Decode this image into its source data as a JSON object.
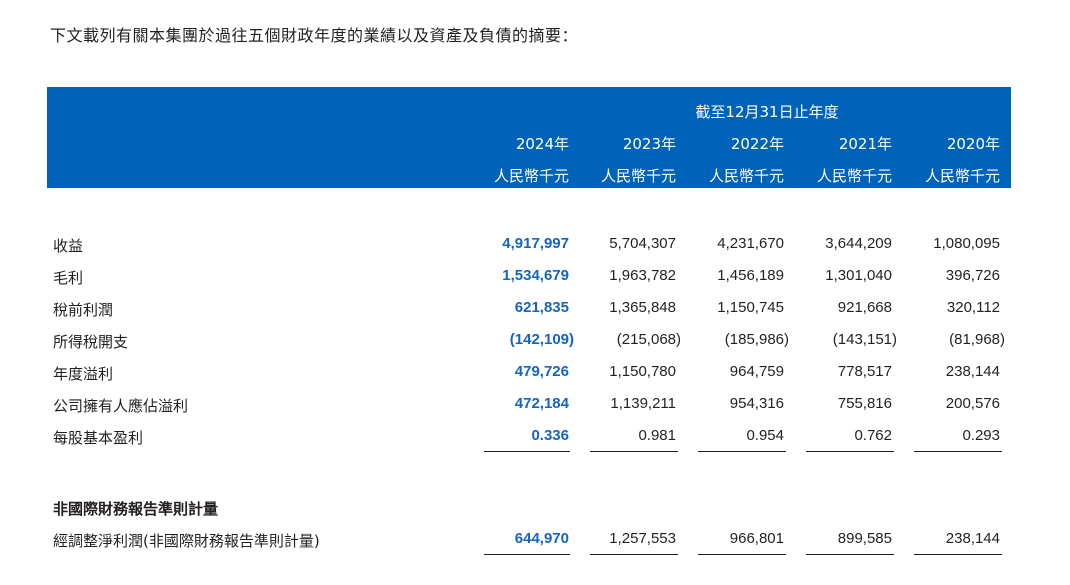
{
  "intro": "下文載列有關本集團於過往五個財政年度的業績以及資產及負債的摘要：",
  "header": {
    "period": "截至12月31日止年度",
    "years": [
      "2024年",
      "2023年",
      "2022年",
      "2021年",
      "2020年"
    ],
    "unit": "人民幣千元"
  },
  "rows": [
    {
      "label": "收益",
      "values": [
        "4,917,997",
        "5,704,307",
        "4,231,670",
        "3,644,209",
        "1,080,095"
      ]
    },
    {
      "label": "毛利",
      "values": [
        "1,534,679",
        "1,963,782",
        "1,456,189",
        "1,301,040",
        "396,726"
      ]
    },
    {
      "label": "稅前利潤",
      "values": [
        "621,835",
        "1,365,848",
        "1,150,745",
        "921,668",
        "320,112"
      ]
    },
    {
      "label": "所得稅開支",
      "values": [
        "(142,109)",
        "(215,068)",
        "(185,986)",
        "(143,151)",
        "(81,968)"
      ]
    },
    {
      "label": "年度溢利",
      "values": [
        "479,726",
        "1,150,780",
        "964,759",
        "778,517",
        "238,144"
      ]
    },
    {
      "label": "公司擁有人應佔溢利",
      "values": [
        "472,184",
        "1,139,211",
        "954,316",
        "755,816",
        "200,576"
      ]
    },
    {
      "label": "每股基本盈利",
      "values": [
        "0.336",
        "0.981",
        "0.954",
        "0.762",
        "0.293"
      ]
    }
  ],
  "section_title": "非國際財務報告準則計量",
  "adjusted_row": {
    "label": "經調整淨利潤(非國際財務報告準則計量)",
    "values": [
      "644,970",
      "1,257,553",
      "966,801",
      "899,585",
      "238,144"
    ]
  },
  "colors": {
    "header_bg": "#0062b8",
    "highlight": "#1565c0"
  }
}
